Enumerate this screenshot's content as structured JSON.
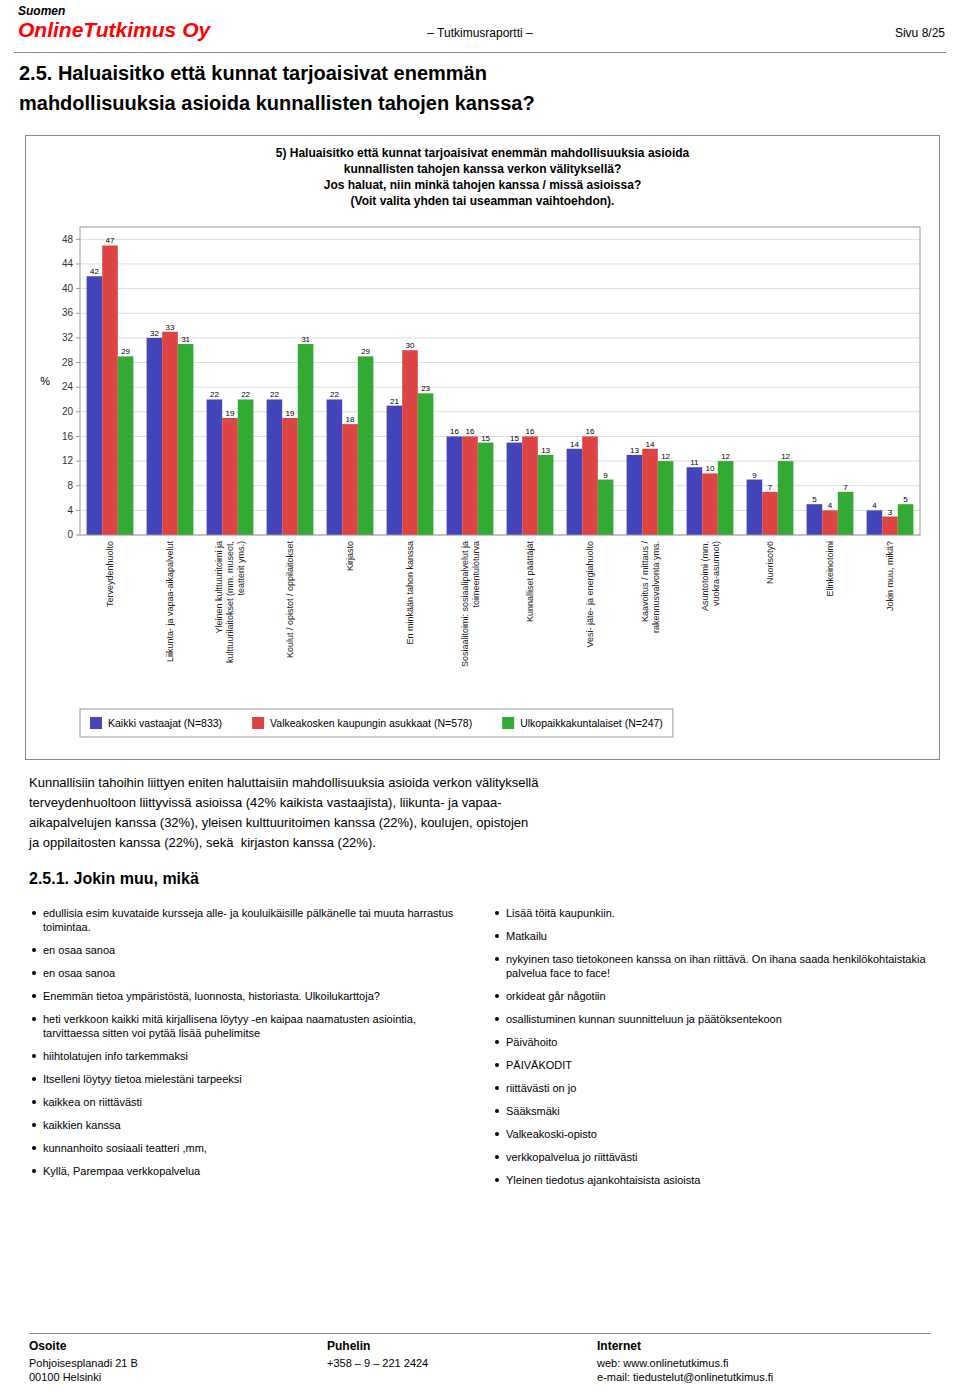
{
  "chart_data": {
    "type": "bar",
    "title": "5) Haluaisitko että kunnat tarjoaisivat enemmän mahdollisuuksia asioida\nkunnallisten tahojen kanssa verkon välityksellä?\nJos haluat, niin minkä tahojen kanssa / missä asioissa?\n(Voit valita yhden tai useamman vaihtoehdon).",
    "categories": [
      "Terveydenhuolto",
      "Liikunta- ja vapaa-aikapalvelut",
      "Yleinen kulttuuri­toimi ja\nkulttuurilaitokset (mm. museot,\nteatterit yms.)",
      "Koulut / opistot / oppilaitokset",
      "Kirjasto",
      "En minkään tahon kanssa",
      "Sosiaalitoimi: sosiaalipalvelut ja\ntoimeentuloturva",
      "Kunnalliset päättäjät",
      "Vesi- jäte- ja energiahuolto",
      "Kaavoitus / mittaus /\nrakennusvalvonta yms.",
      "Asuntotoimi (mm.\nvuokra-asunnot)",
      "Nuorisotyö",
      "Elinkeinotoimi",
      "Jokin muu, mikä?"
    ],
    "series": [
      {
        "name": "Kaikki vastaajat (N=833)",
        "color": "#4444bb",
        "values": [
          42,
          32,
          22,
          22,
          22,
          21,
          16,
          15,
          14,
          13,
          11,
          9,
          5,
          4
        ]
      },
      {
        "name": "Valkeakosken kaupungin asukkaat (N=578)",
        "color": "#dd4444",
        "values": [
          47,
          33,
          19,
          19,
          18,
          30,
          16,
          16,
          16,
          14,
          10,
          7,
          4,
          3
        ]
      },
      {
        "name": "Ulkopaikkakuntalaiset (N=247)",
        "color": "#33aa33",
        "values": [
          29,
          31,
          22,
          31,
          29,
          23,
          15,
          13,
          9,
          12,
          12,
          12,
          7,
          5
        ]
      }
    ],
    "ylabel": "%",
    "ylim": [
      0,
      50
    ],
    "yticks": [
      0,
      4,
      8,
      12,
      16,
      20,
      24,
      28,
      32,
      36,
      40,
      44,
      48
    ],
    "grid": true,
    "legend": "bottom",
    "data_labels": true
  },
  "page": {
    "header_sub": "Suomen",
    "header_company": "OnlineTutkimus Oy",
    "header_report": "– Tutkimusraportti –",
    "header_page": "Sivu 8/25",
    "section_title": [
      "2.5. Haluaisitko että kunnat tarjoaisivat enemmän",
      "mahdollisuuksia asioida kunnallisten tahojen kanssa?"
    ],
    "body_text": [
      "Kunnallisiin tahoihin liittyen eniten haluttaisiin mahdollisuuksia asioida verkon välityksellä",
      "terveydenhuoltoon liittyvissä asioissa (42% kaikista vastaajista), liikunta- ja vapaa-",
      "aikapalvelujen kanssa (32%), yleisen kulttuuritoimen kanssa (22%), koulujen, opistojen",
      "ja oppilaitosten kanssa (22%), sekä  kirjaston kanssa (22%)."
    ],
    "section_251": "2.5.1. Jokin muu, mikä",
    "bullets_left": [
      "edullisia esim kuvataide kursseja alle- ja kouluikäisille pälkänelle tai muuta harrastus toimintaa.",
      "en osaa sanoa",
      "en osaa sanoa",
      "Enemmän tietoa ympäristöstä, luonnosta, historiasta. Ulkoilukarttoja?",
      "heti verkkoon kaikki mitä kirjallisena löytyy -en kaipaa naamatusten asiointia, tarvittaessa sitten voi pytää lisää puhelimitse",
      "hiihtolatujen info tarkemmaksi",
      "Itselleni löytyy tietoa mielestäni tarpeeksi",
      "kaikkea on riittävästi",
      "kaikkien kanssa",
      "kunnanhoito sosiaali teatteri ,mm,",
      "Kyllä, Parempaa verkkopalvelua"
    ],
    "bullets_right": [
      "Lisää töitä kaupunkiin.",
      "Matkailu",
      "nykyinen taso tietokoneen kanssa on ihan riittävä. On ihana saada henkilökohtaistakia palvelua face to face!",
      "orkideat går någotiin",
      "osallistuminen kunnan suunnitteluun ja päätöksentekoon",
      "Päivähoito",
      "PÄIVÄKODIT",
      "riittävästi on jo",
      "Sääksmäki",
      "Valkeakoski-opisto",
      "verkkopalvelua jo riittävästi",
      "Yleinen tiedotus ajankohtaisista asioista"
    ],
    "footer_osoite_label": "Osoite",
    "footer_puhelin_label": "Puhelin",
    "footer_internet_label": "Internet",
    "footer_osoite": "Pohjoisesplanadi 21 B\n00100 Helsinki",
    "footer_puhelin": "+358 – 9 – 221 2424",
    "footer_internet": "web: www.onlinetutkimus.fi\ne-mail: tiedustelut@onlinetutkimus.fi"
  }
}
